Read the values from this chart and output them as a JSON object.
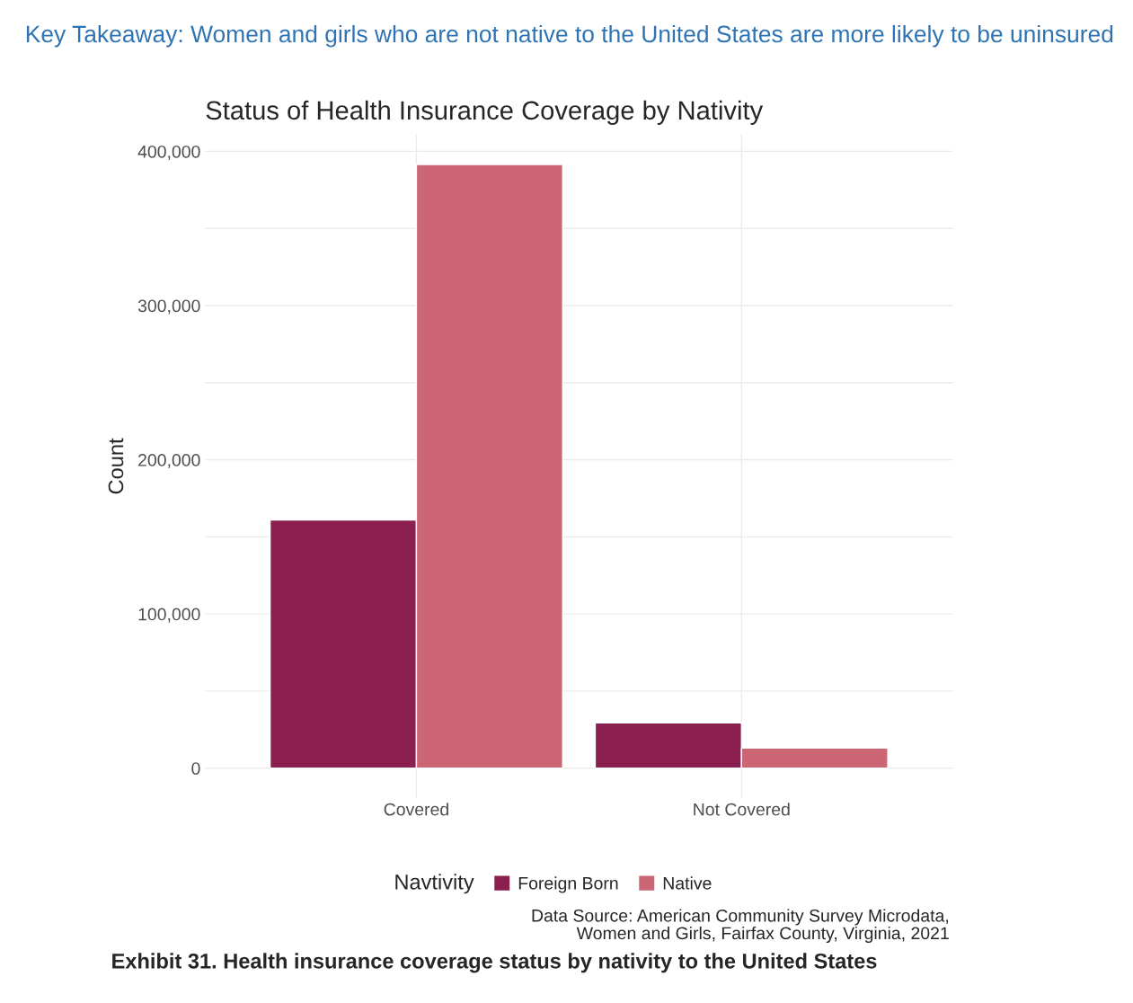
{
  "chart_data": {
    "type": "bar",
    "title": "Status of Health Insurance Coverage by Nativity",
    "ylabel": "Count",
    "legend_title": "Navtivity",
    "categories": [
      "Covered",
      "Not Covered"
    ],
    "series": [
      {
        "name": "Foreign Born",
        "color": "#8b1f50",
        "values": [
          161000,
          29400
        ]
      },
      {
        "name": "Native",
        "color": "#cc6674",
        "values": [
          391500,
          13000
        ]
      }
    ],
    "ylim": [
      -19600,
      411000
    ],
    "yticks": [
      {
        "value": 0,
        "label": "0"
      },
      {
        "value": 50000,
        "label": null
      },
      {
        "value": 100000,
        "label": "100,000"
      },
      {
        "value": 150000,
        "label": null
      },
      {
        "value": 200000,
        "label": "200,000"
      },
      {
        "value": 250000,
        "label": null
      },
      {
        "value": 300000,
        "label": "300,000"
      },
      {
        "value": 350000,
        "label": null
      },
      {
        "value": 400000,
        "label": "400,000"
      }
    ],
    "grid": true,
    "legend": "bottom",
    "annotations": [
      "Key Takeaway: Women and girls who are not native to the United States are more likely to be uninsured",
      "Data Source: American Community Survey Microdata,\nWomen and Girls, Fairfax County, Virginia, 2021",
      "Exhibit 31. Health insurance coverage status by nativity to the United States"
    ]
  }
}
